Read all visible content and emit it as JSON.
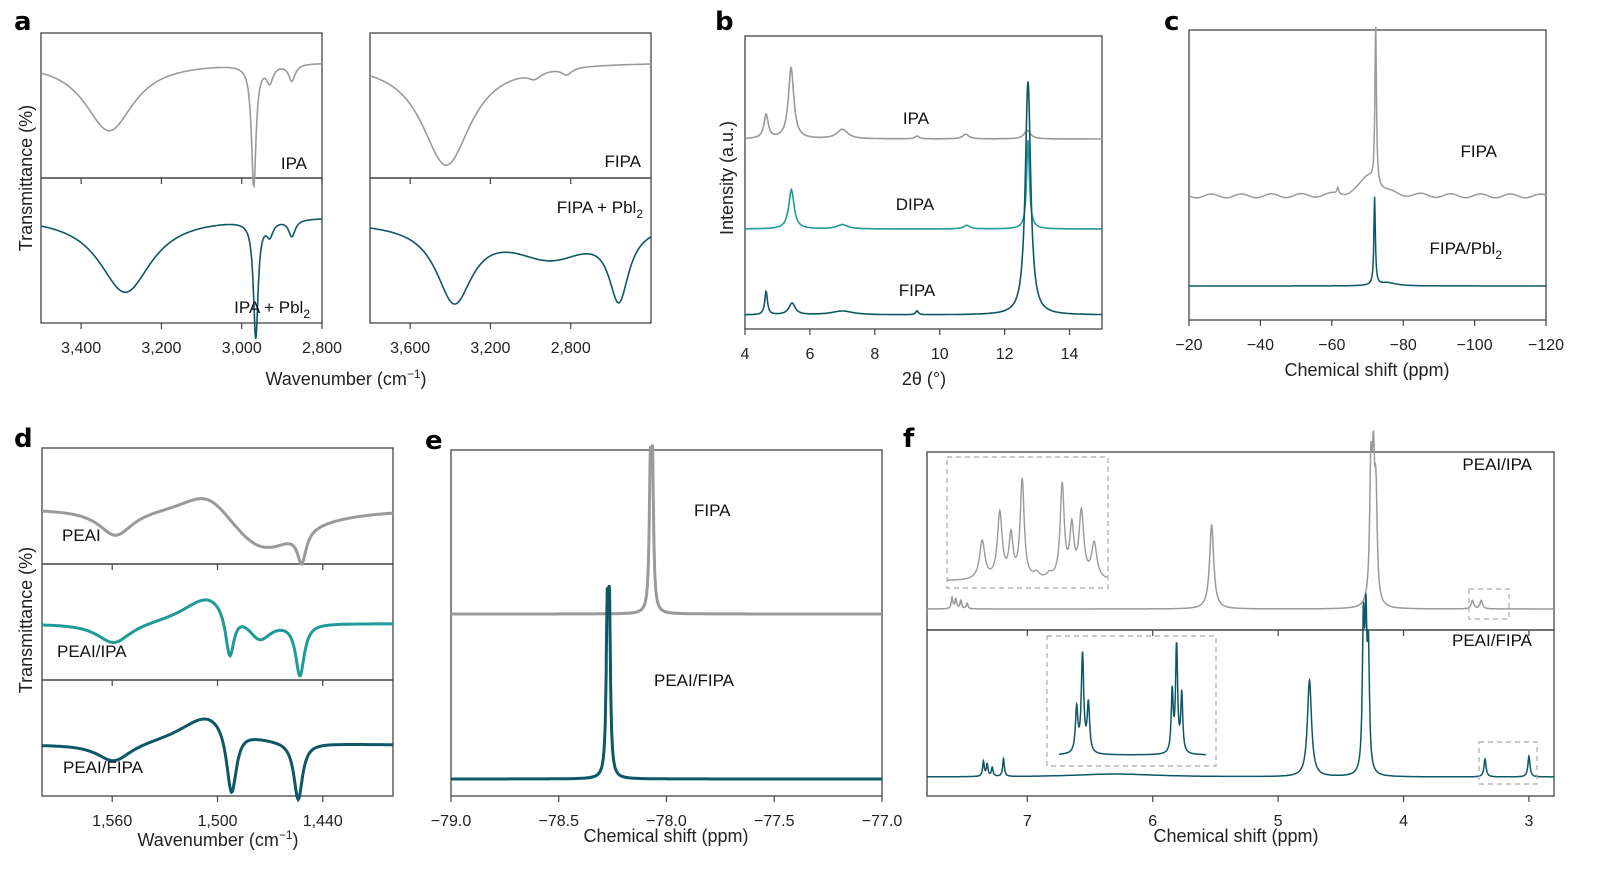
{
  "colors": {
    "gray": "#9a9a9a",
    "teal": "#1f9a98",
    "dark_teal": "#0e5767",
    "axis": "#444444",
    "inset_box": "#aaaaaa"
  },
  "chart_data": [
    {
      "id": "a",
      "panel_label": "a",
      "type": "line",
      "title": "",
      "xlabel": "Wavenumber (cm",
      "xlabel_sup": "−1",
      "xlabel_end": ")",
      "ylabel": "Transmittance (%)",
      "subplots": [
        {
          "xlim": [
            3500,
            2800
          ],
          "xticks": [
            3400,
            3200,
            3000,
            2800
          ],
          "xtick_labels": [
            "3,400",
            "3,200",
            "3,000",
            "2,800"
          ],
          "series": [
            {
              "name": "IPA",
              "label": "IPA",
              "label_sub": "",
              "color": "gray",
              "baseline": 0.82,
              "peaks": [
                [
                  3330,
                  0.5,
                  75
                ],
                [
                  2970,
                  0.88,
                  7
                ],
                [
                  2930,
                  0.12,
                  10
                ],
                [
                  2875,
                  0.12,
                  10
                ]
              ]
            },
            {
              "name": "IPA + PbI2",
              "label": "IPA + Pbl",
              "label_sub": "2",
              "color": "dark_teal",
              "baseline": 0.75,
              "peaks": [
                [
                  3290,
                  0.55,
                  80
                ],
                [
                  2965,
                  0.85,
                  7
                ],
                [
                  2930,
                  0.1,
                  10
                ],
                [
                  2875,
                  0.12,
                  10
                ]
              ]
            }
          ]
        },
        {
          "xlim": [
            3800,
            2400
          ],
          "xticks": [
            3600,
            3200,
            2800
          ],
          "xtick_labels": [
            "3,600",
            "3,200",
            "2,800"
          ],
          "series": [
            {
              "name": "FIPA",
              "label": "FIPA",
              "label_sub": "",
              "color": "gray",
              "baseline": 0.82,
              "peaks": [
                [
                  3420,
                  0.75,
                  150
                ],
                [
                  2980,
                  0.05,
                  40
                ],
                [
                  2820,
                  0.05,
                  30
                ]
              ]
            },
            {
              "name": "FIPA + PbI2",
              "label": "FIPA + Pbl",
              "label_sub": "2",
              "color": "dark_teal",
              "baseline": 0.72,
              "peaks": [
                [
                  3380,
                  0.55,
                  110
                ],
                [
                  2900,
                  0.25,
                  250
                ],
                [
                  2560,
                  0.5,
                  60
                ]
              ]
            }
          ]
        }
      ]
    },
    {
      "id": "b",
      "panel_label": "b",
      "type": "line",
      "xlabel": "2θ (°)",
      "ylabel": "Intensity (a.u.)",
      "xlim": [
        4,
        15
      ],
      "xticks": [
        4,
        6,
        8,
        10,
        12,
        14
      ],
      "xtick_labels": [
        "4",
        "6",
        "8",
        "10",
        "12",
        "14"
      ],
      "series": [
        {
          "name": "IPA",
          "label": "IPA",
          "color": "gray",
          "peaks": [
            [
              4.65,
              0.25,
              0.08
            ],
            [
              5.42,
              0.75,
              0.1
            ],
            [
              7.0,
              0.1,
              0.2
            ],
            [
              9.3,
              0.03,
              0.08
            ],
            [
              10.8,
              0.05,
              0.12
            ],
            [
              12.7,
              0.09,
              0.12
            ]
          ]
        },
        {
          "name": "DIPA",
          "label": "DIPA",
          "color": "teal",
          "peaks": [
            [
              5.43,
              0.55,
              0.1
            ],
            [
              7.0,
              0.06,
              0.2
            ],
            [
              10.83,
              0.05,
              0.12
            ],
            [
              12.72,
              1.2,
              0.05
            ],
            [
              12.75,
              0.05,
              0.15
            ]
          ]
        },
        {
          "name": "FIPA",
          "label": "FIPA",
          "color": "dark_teal",
          "peaks": [
            [
              4.65,
              0.12,
              0.05
            ],
            [
              5.45,
              0.06,
              0.12
            ],
            [
              7.0,
              0.02,
              0.4
            ],
            [
              9.3,
              0.02,
              0.05
            ],
            [
              12.72,
              1.2,
              0.1
            ]
          ]
        }
      ]
    },
    {
      "id": "c",
      "panel_label": "c",
      "type": "line",
      "xlabel": "Chemical shift (ppm)",
      "ylabel": "",
      "xlim": [
        -20,
        -120
      ],
      "xticks": [
        -20,
        -40,
        -60,
        -80,
        -100,
        -120
      ],
      "xtick_labels": [
        "−20",
        "−40",
        "−60",
        "−80",
        "−100",
        "−120"
      ],
      "series": [
        {
          "name": "FIPA",
          "label": "FIPA",
          "label_sub": "",
          "color": "gray",
          "peaks": [
            [
              -72.3,
              1.0,
              0.25
            ],
            [
              -70.5,
              0.12,
              3.0
            ],
            [
              -61.7,
              0.04,
              0.3
            ]
          ]
        },
        {
          "name": "FIPA/PbI2",
          "label": "FIPA/Pbl",
          "label_sub": "2",
          "color": "dark_teal",
          "peaks": [
            [
              -72.0,
              0.55,
              0.25
            ],
            [
              -75.5,
              0.02,
              3.0
            ]
          ]
        }
      ]
    },
    {
      "id": "d",
      "panel_label": "d",
      "type": "line",
      "xlabel": "Wavenumber (cm",
      "xlabel_sup": "−1",
      "xlabel_end": ")",
      "ylabel": "Transmittance (%)",
      "xlim": [
        1600,
        1400
      ],
      "xticks": [
        1560,
        1500,
        1440
      ],
      "xtick_labels": [
        "1,560",
        "1,500",
        "1,440"
      ],
      "series": [
        {
          "name": "PEAI",
          "label": "PEAI",
          "color": "gray",
          "baseline": 0.5,
          "peaks": [
            [
              1558,
              0.25,
              12
            ],
            [
              1505,
              -0.3,
              20
            ],
            [
              1475,
              0.45,
              28
            ],
            [
              1452,
              0.3,
              3
            ]
          ]
        },
        {
          "name": "PEAI/IPA",
          "label": "PEAI/IPA",
          "color": "teal",
          "baseline": 0.5,
          "peaks": [
            [
              1559,
              0.2,
              12
            ],
            [
              1505,
              -0.28,
              18
            ],
            [
              1493,
              0.45,
              3
            ],
            [
              1476,
              0.2,
              8
            ],
            [
              1453,
              0.5,
              3
            ]
          ]
        },
        {
          "name": "PEAI/FIPA",
          "label": "PEAI/FIPA",
          "color": "dark_teal",
          "baseline": 0.45,
          "peaks": [
            [
              1559,
              0.18,
              12
            ],
            [
              1505,
              -0.3,
              20
            ],
            [
              1492,
              0.65,
              3.5
            ],
            [
              1454,
              0.55,
              3
            ]
          ]
        }
      ]
    },
    {
      "id": "e",
      "panel_label": "e",
      "type": "line",
      "xlabel": "Chemical shift (ppm)",
      "ylabel": "",
      "xlim": [
        -79.0,
        -77.0
      ],
      "xticks": [
        -79.0,
        -78.5,
        -78.0,
        -77.5,
        -77.0
      ],
      "xtick_labels": [
        "−79.0",
        "−78.5",
        "−78.0",
        "−77.5",
        "−77.0"
      ],
      "series": [
        {
          "name": "FIPA",
          "label": "FIPA",
          "color": "gray",
          "peaks": [
            [
              -78.065,
              0.95,
              0.006
            ],
            [
              -78.075,
              0.93,
              0.006
            ]
          ]
        },
        {
          "name": "PEAI/FIPA",
          "label": "PEAI/FIPA",
          "color": "dark_teal",
          "peaks": [
            [
              -78.265,
              0.95,
              0.006
            ],
            [
              -78.275,
              0.93,
              0.006
            ]
          ]
        }
      ]
    },
    {
      "id": "f",
      "panel_label": "f",
      "type": "line",
      "xlabel": "Chemical shift (ppm)",
      "ylabel": "",
      "xlim": [
        7.8,
        2.8
      ],
      "xticks": [
        7,
        6,
        5,
        4,
        3
      ],
      "xtick_labels": [
        "7",
        "6",
        "5",
        "4",
        "3"
      ],
      "series": [
        {
          "name": "PEAI/IPA",
          "label": "PEAI/IPA",
          "color": "gray",
          "peaks": [
            [
              7.6,
              0.08,
              0.008
            ],
            [
              7.57,
              0.07,
              0.008
            ],
            [
              7.53,
              0.06,
              0.008
            ],
            [
              7.48,
              0.04,
              0.008
            ],
            [
              5.53,
              0.6,
              0.02
            ],
            [
              4.26,
              0.9,
              0.012
            ],
            [
              4.24,
              0.85,
              0.012
            ],
            [
              4.22,
              0.7,
              0.012
            ],
            [
              3.45,
              0.06,
              0.012
            ],
            [
              3.38,
              0.06,
              0.012
            ]
          ],
          "insets": [
            {
              "range": [
                7.65,
                7.4
              ],
              "region": "aromatic"
            },
            {
              "range": [
                3.55,
                3.25
              ],
              "region": "methylene"
            }
          ]
        },
        {
          "name": "PEAI/FIPA",
          "label": "PEAI/FIPA",
          "color": "dark_teal",
          "peaks": [
            [
              7.35,
              0.1,
              0.008
            ],
            [
              7.32,
              0.08,
              0.008
            ],
            [
              7.28,
              0.06,
              0.008
            ],
            [
              7.19,
              0.12,
              0.008
            ],
            [
              6.3,
              0.02,
              0.4
            ],
            [
              4.75,
              0.65,
              0.02
            ],
            [
              4.32,
              0.95,
              0.01
            ],
            [
              4.3,
              0.9,
              0.01
            ],
            [
              4.28,
              0.75,
              0.01
            ],
            [
              3.35,
              0.12,
              0.01
            ],
            [
              3.0,
              0.14,
              0.01
            ]
          ],
          "insets": [
            {
              "range": [
                7.4,
                7.15
              ],
              "region": "aromatic"
            },
            {
              "range": [
                3.5,
                2.85
              ],
              "region": "methylene"
            }
          ]
        }
      ]
    }
  ]
}
